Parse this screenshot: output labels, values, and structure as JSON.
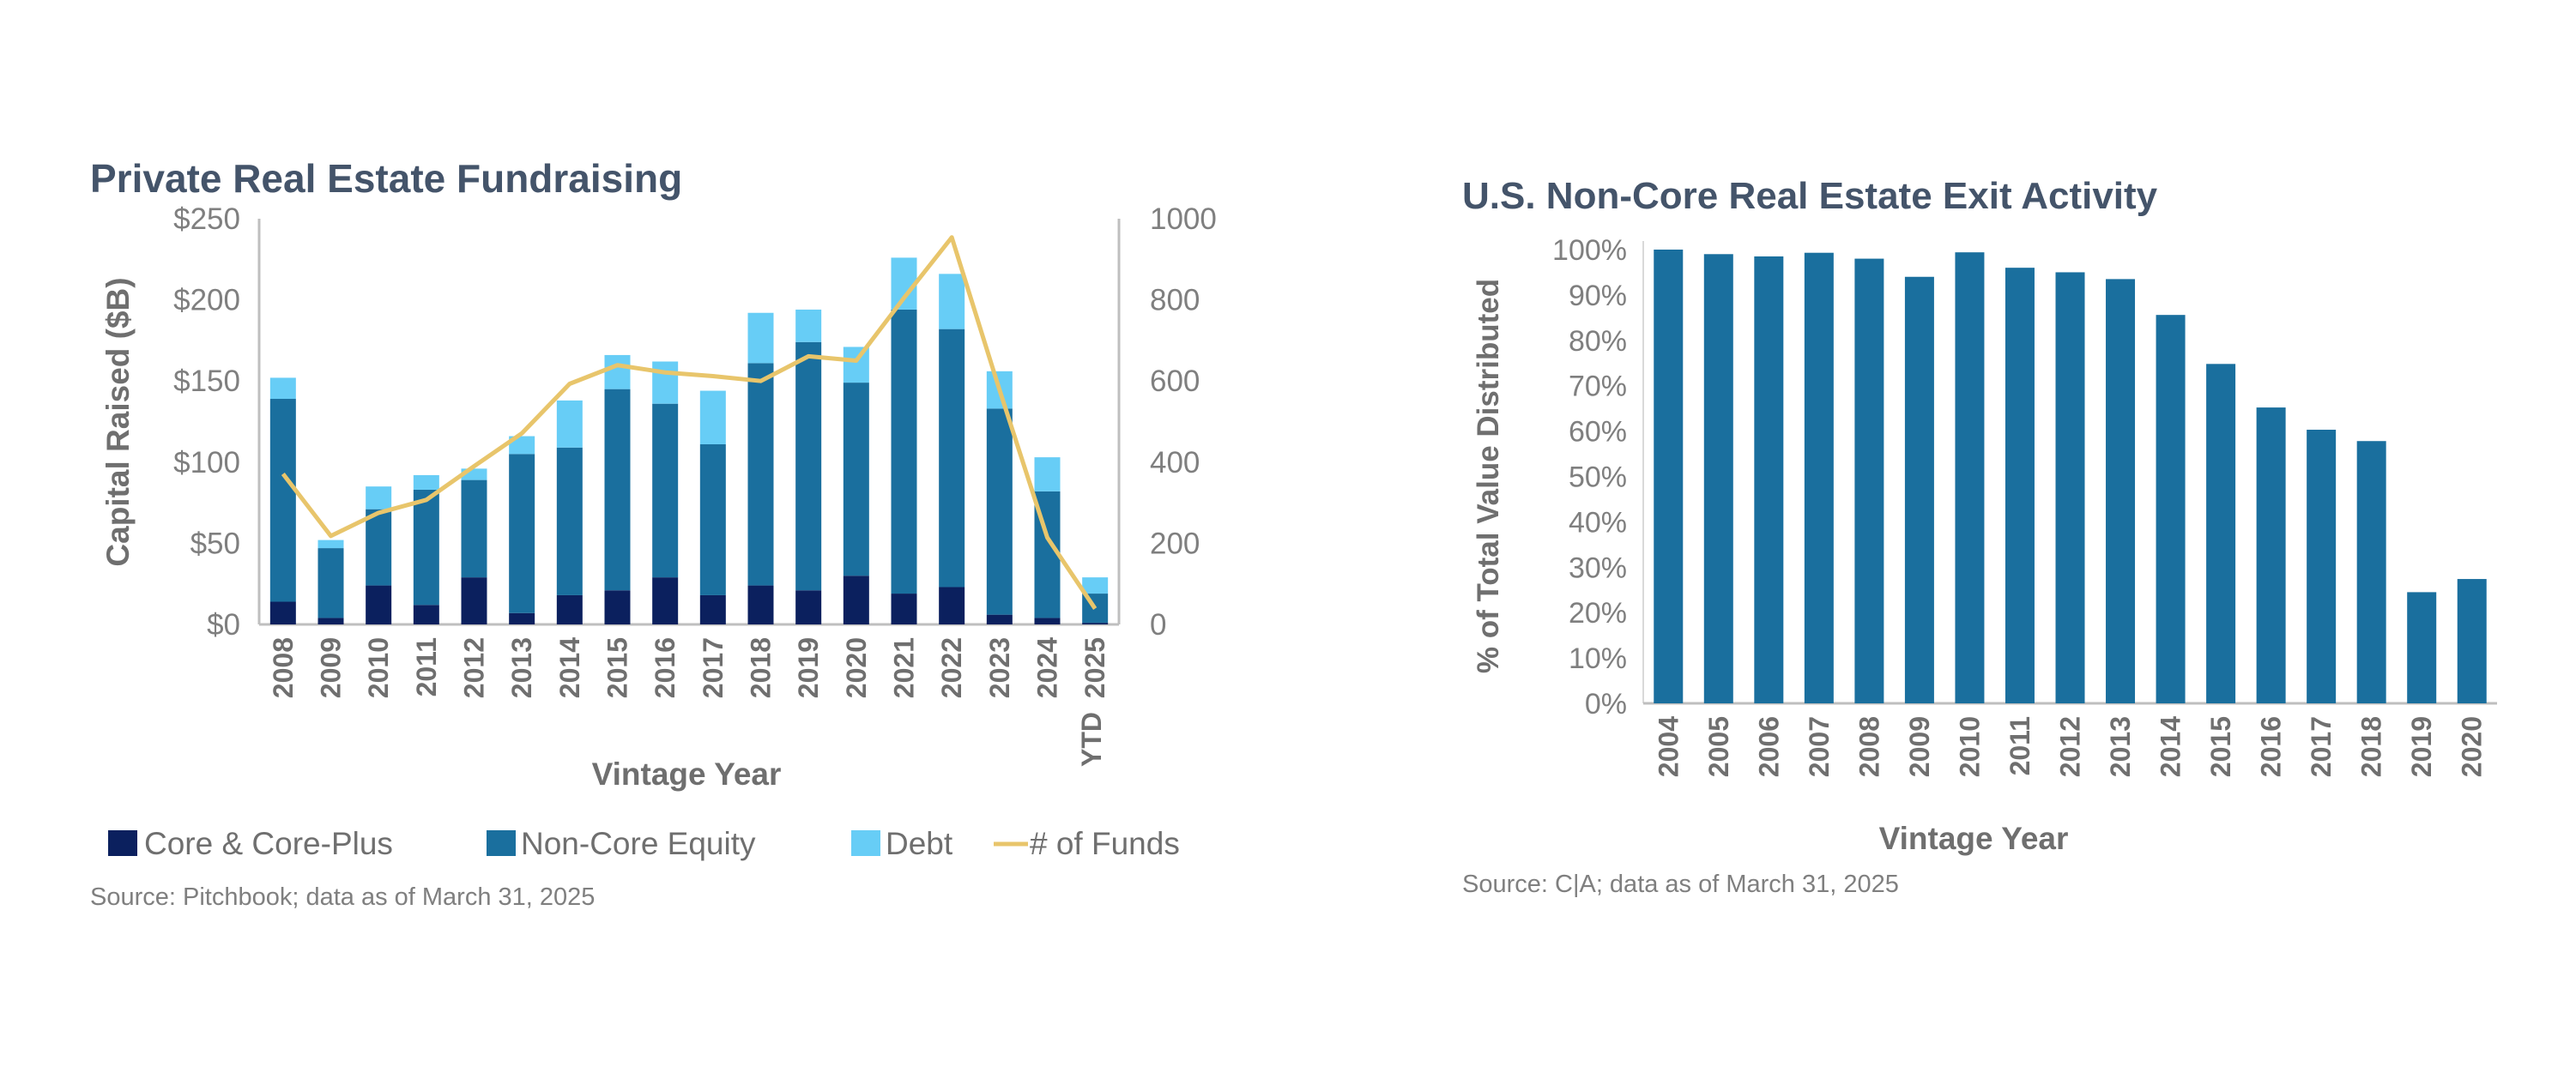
{
  "colors": {
    "core": "#0b205e",
    "noncore": "#1a6f9e",
    "debt": "#67cdf6",
    "funds": "#e8c56b",
    "exit": "#1a6f9e",
    "title": "#44546a"
  },
  "chart_data": [
    {
      "type": "bar",
      "stacked": true,
      "title": "Private Real Estate Fundraising",
      "xlabel": "Vintage Year",
      "ylabel": "Capital Raised ($B)",
      "ylim": [
        0,
        250
      ],
      "y_ticks": [
        "$0",
        "$50",
        "$100",
        "$150",
        "$200",
        "$250"
      ],
      "y2lim": [
        0,
        1000
      ],
      "y2_ticks": [
        "0",
        "200",
        "400",
        "600",
        "800",
        "1000"
      ],
      "categories": [
        "2008",
        "2009",
        "2010",
        "2011",
        "2012",
        "2013",
        "2014",
        "2015",
        "2016",
        "2017",
        "2018",
        "2019",
        "2020",
        "2021",
        "2022",
        "2023",
        "2024",
        "2025"
      ],
      "last_category_suffix": "YTD",
      "series": [
        {
          "name": "Core & Core-Plus",
          "type": "bar",
          "values": [
            14,
            4,
            24,
            12,
            29,
            7,
            18,
            21,
            29,
            18,
            24,
            21,
            30,
            19,
            23,
            6,
            4,
            1
          ]
        },
        {
          "name": "Non-Core Equity",
          "type": "bar",
          "values": [
            125,
            43,
            47,
            71,
            60,
            98,
            91,
            124,
            107,
            93,
            137,
            153,
            119,
            175,
            159,
            127,
            78,
            18
          ]
        },
        {
          "name": "Debt",
          "type": "bar",
          "values": [
            13,
            5,
            14,
            9,
            7,
            11,
            29,
            21,
            26,
            33,
            31,
            20,
            22,
            32,
            34,
            23,
            21,
            10
          ]
        },
        {
          "name": "# of Funds",
          "type": "line",
          "axis": "right",
          "values": [
            371,
            218,
            275,
            307,
            390,
            471,
            593,
            639,
            621,
            612,
            600,
            661,
            650,
            805,
            954,
            578,
            214,
            39
          ]
        }
      ],
      "legend": "bottom",
      "source": "Source:  Pitchbook; data as of March 31, 2025"
    },
    {
      "type": "bar",
      "title": "U.S. Non-Core Real Estate Exit Activity",
      "xlabel": "Vintage Year",
      "ylabel": "% of Total Value Distributed",
      "ylim": [
        0,
        100
      ],
      "y_ticks": [
        "0%",
        "10%",
        "20%",
        "30%",
        "40%",
        "50%",
        "60%",
        "70%",
        "80%",
        "90%",
        "100%"
      ],
      "categories": [
        "2004",
        "2005",
        "2006",
        "2007",
        "2008",
        "2009",
        "2010",
        "2011",
        "2012",
        "2013",
        "2014",
        "2015",
        "2016",
        "2017",
        "2018",
        "2019",
        "2020"
      ],
      "values": [
        100,
        99,
        98.5,
        99.3,
        98,
        94,
        99.4,
        96,
        95,
        93.5,
        85.6,
        74.8,
        65.2,
        60.3,
        57.8,
        24.5,
        27.4
      ],
      "source": "Source: C|A; data as of March 31, 2025"
    }
  ]
}
